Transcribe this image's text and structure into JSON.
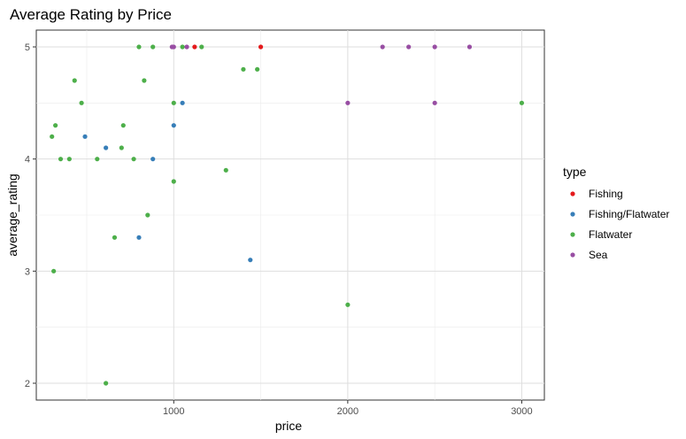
{
  "chart_data": {
    "type": "scatter",
    "title": "Average Rating by Price",
    "xlabel": "price",
    "ylabel": "average_rating",
    "xlim": [
      210,
      3130
    ],
    "ylim": [
      1.85,
      5.15
    ],
    "xticks": [
      1000,
      2000,
      3000
    ],
    "yticks": [
      2,
      3,
      4,
      5
    ],
    "grid": true,
    "legend": {
      "title": "type",
      "position": "right"
    },
    "series": [
      {
        "name": "Fishing",
        "color": "#E41A1C",
        "points": [
          [
            1120,
            5.0
          ],
          [
            1500,
            5.0
          ]
        ]
      },
      {
        "name": "Fishing/Flatwater",
        "color": "#377EB8",
        "points": [
          [
            490,
            4.2
          ],
          [
            610,
            4.1
          ],
          [
            880,
            4.0
          ],
          [
            800,
            3.3
          ],
          [
            1000,
            4.3
          ],
          [
            1050,
            4.5
          ],
          [
            1440,
            3.1
          ]
        ]
      },
      {
        "name": "Flatwater",
        "color": "#4DAF4A",
        "points": [
          [
            300,
            4.2
          ],
          [
            320,
            4.3
          ],
          [
            350,
            4.0
          ],
          [
            400,
            4.0
          ],
          [
            430,
            4.7
          ],
          [
            470,
            4.5
          ],
          [
            560,
            4.0
          ],
          [
            660,
            3.3
          ],
          [
            700,
            4.1
          ],
          [
            710,
            4.3
          ],
          [
            770,
            4.0
          ],
          [
            800,
            5.0
          ],
          [
            830,
            4.7
          ],
          [
            850,
            3.5
          ],
          [
            880,
            5.0
          ],
          [
            1000,
            4.5
          ],
          [
            1000,
            3.8
          ],
          [
            1050,
            5.0
          ],
          [
            1160,
            5.0
          ],
          [
            1300,
            3.9
          ],
          [
            1400,
            4.8
          ],
          [
            1480,
            4.8
          ],
          [
            2000,
            2.7
          ],
          [
            3000,
            4.5
          ],
          [
            310,
            3.0
          ],
          [
            610,
            2.0
          ]
        ]
      },
      {
        "name": "Sea",
        "color": "#984EA3",
        "points": [
          [
            990,
            5.0
          ],
          [
            1000,
            5.0
          ],
          [
            1075,
            5.0
          ],
          [
            2000,
            4.5
          ],
          [
            2200,
            5.0
          ],
          [
            2350,
            5.0
          ],
          [
            2500,
            5.0
          ],
          [
            2500,
            4.5
          ],
          [
            2700,
            5.0
          ]
        ]
      }
    ]
  }
}
